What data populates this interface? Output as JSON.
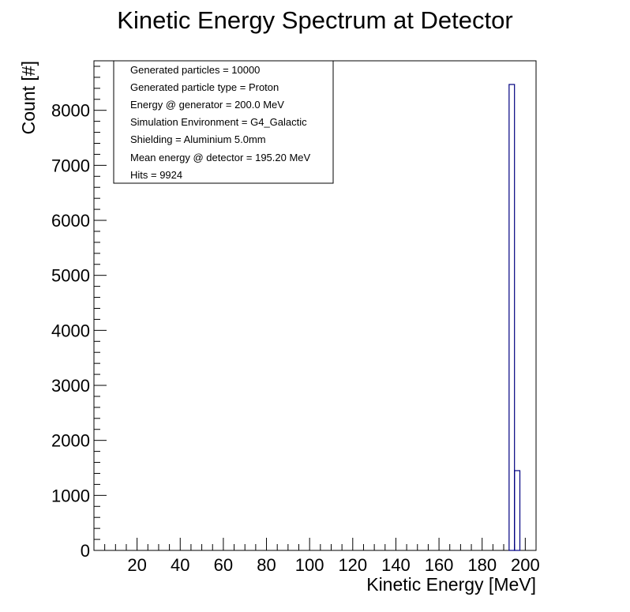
{
  "chart_data": {
    "type": "bar",
    "style": "step-histogram",
    "title": "Kinetic Energy Spectrum at Detector",
    "xlabel": "Kinetic Energy [MeV]",
    "ylabel": "Count [#]",
    "xlim": [
      0,
      205
    ],
    "ylim": [
      0,
      8900
    ],
    "xticks": [
      20,
      40,
      60,
      80,
      100,
      120,
      140,
      160,
      180,
      200
    ],
    "yticks": [
      0,
      1000,
      2000,
      3000,
      4000,
      5000,
      6000,
      7000,
      8000
    ],
    "line_color": "#000080",
    "bin_edges": [
      192.5,
      195,
      197.5
    ],
    "values": [
      8470,
      1450
    ],
    "stats_box": {
      "lines": [
        "Generated particles = 10000",
        "Generated particle type = Proton",
        "Energy @ generator = 200.0 MeV",
        "Simulation Environment = G4_Galactic",
        "Shielding = Aluminium 5.0mm",
        "Mean energy @ detector = 195.20 MeV",
        "Hits = 9924"
      ]
    }
  }
}
